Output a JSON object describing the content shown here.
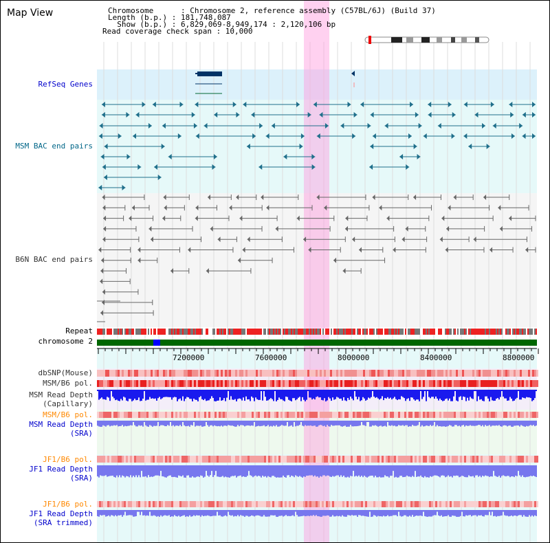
{
  "window": {
    "title": "Map View"
  },
  "info": {
    "chromosome_line": "Chromosome      : Chromosome 2, reference assembly (C57BL/6J) (Build 37)",
    "length_line": "Length (b.p.) : 181,748,087",
    "show_line": "  Show (b.p.) : 6,829,069-8,949,174 : 2,120,106 bp",
    "coverage_line": "Read coverage check span : 10,000"
  },
  "tracks": {
    "refseq": "RefSeq Genes",
    "msm_bac": "MSM BAC end pairs",
    "b6n_bac": "B6N BAC end pairs",
    "repeat": "Repeat",
    "chromosome": "chromosome 2",
    "dbsnp": "dbSNP(Mouse)",
    "msm_b6_pol": "MSM/B6 pol.",
    "msm_depth_cap_1": "MSM Read Depth",
    "msm_depth_cap_2": "(Capillary)",
    "msm_b6_pol_sra": "MSM/B6 pol.",
    "msm_depth_sra_1": "MSM Read Depth",
    "msm_depth_sra_2": "(SRA)",
    "jf1_b6_pol": "JF1/B6 pol.",
    "jf1_depth_sra_1": "JF1 Read Depth",
    "jf1_depth_sra_2": "(SRA)",
    "jf1_b6_pol_trim": "JF1/B6 pol.",
    "jf1_depth_trim_1": "JF1 Read Depth",
    "jf1_depth_trim_2": "(SRA trimmed)"
  },
  "axis": {
    "ticks": [
      "7200000",
      "7600000",
      "8000000",
      "8400000",
      "8800000"
    ]
  },
  "colors": {
    "highlight": "#ff99dd",
    "refseq_bg": "#dcf1fb",
    "msm_bg": "#e6f9f9",
    "b6n_bg": "#f5f5f5",
    "gene": "#003366",
    "msm_pair": "#1f6f8b",
    "b6n_pair": "#666666",
    "chrom_green": "#006600",
    "chrom_blue": "#0000ff",
    "depth_dark": "#1a1aee",
    "depth_light": "#7777ee",
    "pol_red": "#ee3333"
  }
}
